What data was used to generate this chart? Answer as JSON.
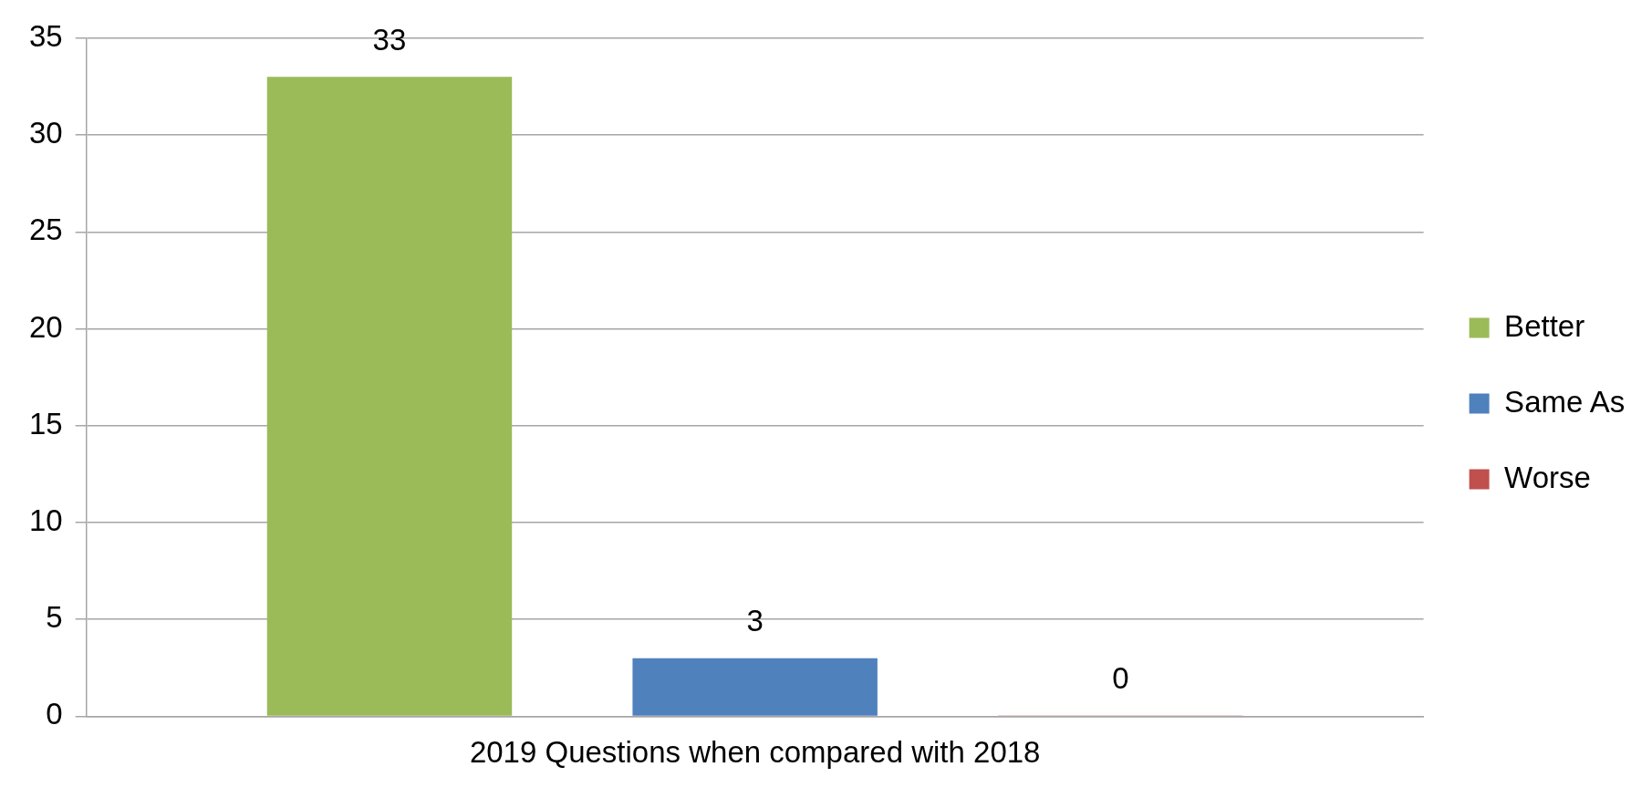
{
  "chart_data": {
    "type": "bar",
    "categories": [
      "2019 Questions when compared with 2018"
    ],
    "series": [
      {
        "name": "Better",
        "color": "#9bbb59",
        "values": [
          33
        ]
      },
      {
        "name": "Same As",
        "color": "#4f81bd",
        "values": [
          3
        ]
      },
      {
        "name": "Worse",
        "color": "#c0504d",
        "values": [
          0
        ]
      }
    ],
    "ylim": [
      0,
      35
    ],
    "yticks": [
      0,
      5,
      10,
      15,
      20,
      25,
      30,
      35
    ],
    "grid": "y",
    "legend": "right",
    "data_labels": true
  }
}
